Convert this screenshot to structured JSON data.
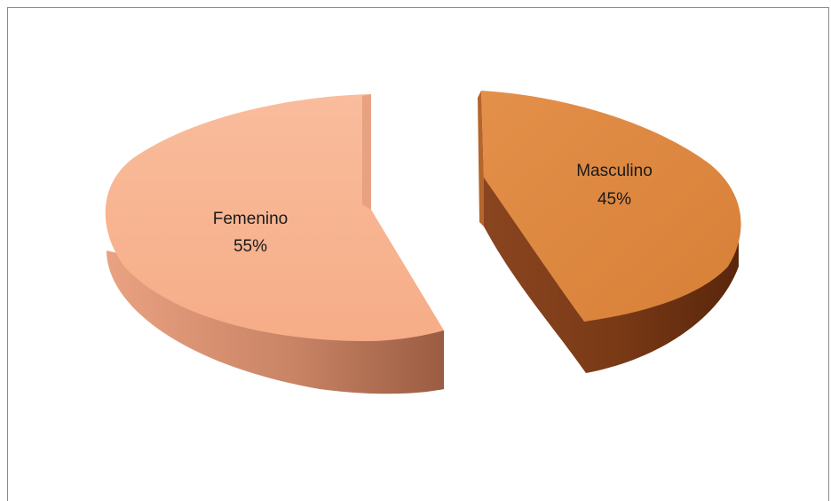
{
  "chart_data": {
    "type": "pie",
    "style": "3d-exploded",
    "slices": [
      {
        "name": "Femenino",
        "percent_label": "55%",
        "value": 55,
        "color": "#f7b18c",
        "side_color": "#a7674a"
      },
      {
        "name": "Masculino",
        "percent_label": "45%",
        "value": 45,
        "color": "#e08a3e",
        "side_color": "#7a3a16"
      }
    ],
    "title": "",
    "legend": "none"
  }
}
